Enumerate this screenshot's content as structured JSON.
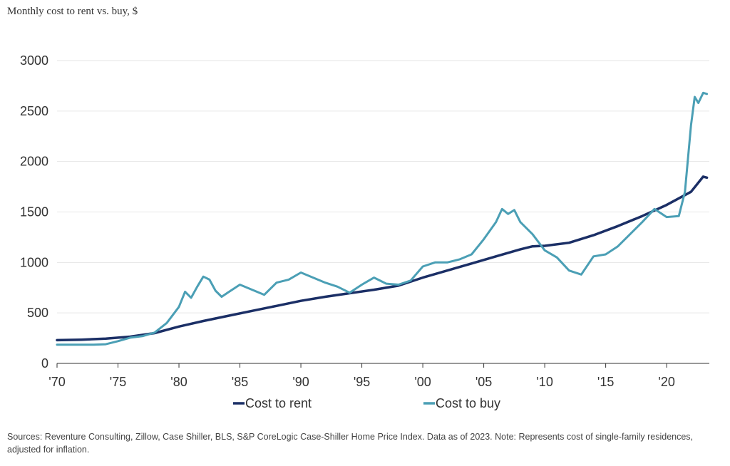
{
  "chart_data": {
    "type": "line",
    "title": "Monthly cost to rent vs. buy, $",
    "xlabel": "",
    "ylabel": "",
    "xlim": [
      1970,
      2023.5
    ],
    "ylim": [
      0,
      3000
    ],
    "grid": true,
    "legend_position": "bottom",
    "x_tick_values": [
      1970,
      1975,
      1980,
      1985,
      1990,
      1995,
      2000,
      2005,
      2010,
      2015,
      2020
    ],
    "x_tick_labels": [
      "'70",
      "'75",
      "'80",
      "'85",
      "'90",
      "'95",
      "'00",
      "'05",
      "'10",
      "'15",
      "'20"
    ],
    "y_tick_values": [
      0,
      500,
      1000,
      1500,
      2000,
      2500,
      3000
    ],
    "y_tick_labels": [
      "0",
      "500",
      "1000",
      "1500",
      "2000",
      "2500",
      "3000"
    ],
    "series": [
      {
        "name": "Cost to rent",
        "color": "#1b2f66",
        "x": [
          1970,
          1972,
          1974,
          1976,
          1978,
          1980,
          1982,
          1984,
          1986,
          1988,
          1990,
          1992,
          1994,
          1996,
          1998,
          2000,
          2002,
          2004,
          2006,
          2008,
          2009,
          2010,
          2012,
          2014,
          2016,
          2018,
          2020,
          2022,
          2023,
          2023.3
        ],
        "values": [
          230,
          235,
          245,
          265,
          300,
          365,
          420,
          470,
          520,
          570,
          620,
          660,
          695,
          730,
          770,
          850,
          920,
          990,
          1060,
          1130,
          1160,
          1165,
          1195,
          1270,
          1360,
          1460,
          1570,
          1700,
          1850,
          1840
        ]
      },
      {
        "name": "Cost to buy",
        "color": "#4b9fb5",
        "x": [
          1970,
          1973,
          1974,
          1975,
          1976,
          1977,
          1978,
          1979,
          1980,
          1980.5,
          1981,
          1981.5,
          1982,
          1982.5,
          1983,
          1983.5,
          1984,
          1985,
          1986,
          1987,
          1988,
          1989,
          1990,
          1991,
          1992,
          1993,
          1994,
          1995,
          1996,
          1997,
          1998,
          1999,
          2000,
          2001,
          2002,
          2003,
          2004,
          2005,
          2006,
          2006.5,
          2007,
          2007.5,
          2008,
          2009,
          2010,
          2011,
          2012,
          2013,
          2014,
          2015,
          2016,
          2017,
          2018,
          2019,
          2020,
          2021,
          2021.5,
          2022,
          2022.3,
          2022.6,
          2023,
          2023.3
        ],
        "values": [
          185,
          185,
          190,
          220,
          255,
          270,
          305,
          400,
          560,
          710,
          650,
          760,
          860,
          830,
          720,
          660,
          700,
          780,
          730,
          680,
          800,
          830,
          900,
          850,
          800,
          760,
          700,
          780,
          850,
          790,
          780,
          820,
          960,
          1000,
          1000,
          1030,
          1080,
          1230,
          1400,
          1530,
          1480,
          1520,
          1400,
          1280,
          1120,
          1050,
          920,
          880,
          1060,
          1080,
          1160,
          1280,
          1400,
          1530,
          1450,
          1460,
          1700,
          2360,
          2640,
          2580,
          2680,
          2670
        ]
      }
    ],
    "source": "Sources: Reventure Consulting, Zillow, Case Shiller, BLS, S&P CoreLogic Case-Shiller Home Price Index. Data as of 2023. Note: Represents cost of single-family residences, adjusted for inflation."
  }
}
